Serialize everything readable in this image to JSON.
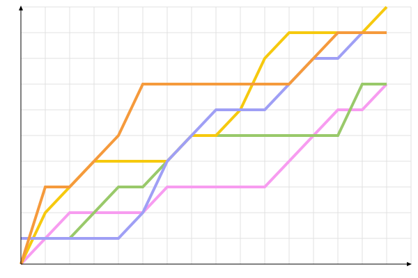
{
  "chart_data": {
    "type": "line",
    "x": [
      0,
      1,
      2,
      3,
      4,
      5,
      6,
      7,
      8,
      9,
      10,
      11,
      12,
      13,
      14,
      15
    ],
    "series": [
      {
        "color": "#f79cf0",
        "values": [
          0,
          1,
          2,
          2,
          2,
          2,
          3,
          3,
          3,
          3,
          3,
          4,
          5,
          6,
          6,
          7
        ]
      },
      {
        "color": "#99c96a",
        "values": [
          1,
          1,
          1,
          2,
          3,
          3,
          4,
          5,
          5,
          5,
          5,
          5,
          5,
          5,
          7,
          7
        ]
      },
      {
        "color": "#f6c90e",
        "values": [
          0,
          2,
          3,
          4,
          4,
          4,
          4,
          5,
          5,
          6,
          8,
          9,
          9,
          9,
          9,
          10
        ]
      },
      {
        "color": "#9f9ff5",
        "values": [
          1,
          1,
          1,
          1,
          1,
          2,
          4,
          5,
          6,
          6,
          6,
          7,
          8,
          8,
          9,
          9
        ]
      },
      {
        "color": "#f59a3c",
        "values": [
          0,
          3,
          3,
          4,
          5,
          7,
          7,
          7,
          7,
          7,
          7,
          7,
          8,
          9,
          9,
          9
        ]
      }
    ],
    "xlim": [
      0,
      16
    ],
    "ylim": [
      0,
      10
    ],
    "xticks": [
      0,
      1,
      2,
      3,
      4,
      5,
      6,
      7,
      8,
      9,
      10,
      11,
      12,
      13,
      14,
      15,
      16
    ],
    "yticks": [
      0,
      1,
      2,
      3,
      4,
      5,
      6,
      7,
      8,
      9,
      10
    ],
    "grid": true
  }
}
